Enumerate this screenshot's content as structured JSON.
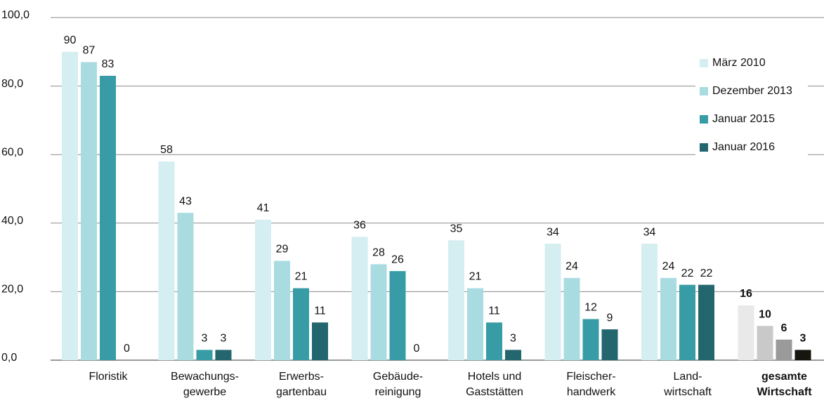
{
  "chart_data": {
    "type": "bar",
    "categories": [
      [
        "Floristik"
      ],
      [
        "Bewachungs-",
        "gewerbe"
      ],
      [
        "Erwerbs-",
        "gartenbau"
      ],
      [
        "Gebäude-",
        "reinigung"
      ],
      [
        "Hotels und",
        "Gaststätten"
      ],
      [
        "Fleischer-",
        "handwerk"
      ],
      [
        "Land-",
        "wirtschaft"
      ],
      [
        "gesamte",
        "Wirtschaft"
      ]
    ],
    "series": [
      {
        "name": "März 2010",
        "color": "#d5eef1",
        "colors": [
          "#d5eef1",
          "#d5eef1",
          "#d5eef1",
          "#d5eef1",
          "#d5eef1",
          "#d5eef1",
          "#d5eef1",
          "#e9e9e9"
        ],
        "values": [
          90,
          58,
          41,
          36,
          35,
          34,
          34,
          16
        ]
      },
      {
        "name": "Dezember 2013",
        "color": "#a9dce1",
        "colors": [
          "#a9dce1",
          "#a9dce1",
          "#a9dce1",
          "#a9dce1",
          "#a9dce1",
          "#a9dce1",
          "#a9dce1",
          "#c9c9c9"
        ],
        "values": [
          87,
          43,
          29,
          28,
          21,
          24,
          24,
          10
        ]
      },
      {
        "name": "Januar  2015",
        "color": "#379ca5",
        "colors": [
          "#379ca5",
          "#379ca5",
          "#379ca5",
          "#379ca5",
          "#379ca5",
          "#379ca5",
          "#379ca5",
          "#9a9a9a"
        ],
        "values": [
          83,
          3,
          21,
          26,
          11,
          12,
          22,
          6
        ]
      },
      {
        "name": "Januar 2016",
        "color": "#23666e",
        "colors": [
          "#23666e",
          "#23666e",
          "#23666e",
          "#23666e",
          "#23666e",
          "#23666e",
          "#23666e",
          "#16160e"
        ],
        "values": [
          0,
          3,
          11,
          0,
          3,
          9,
          22,
          3
        ]
      }
    ],
    "ylim": [
      0,
      100
    ],
    "yticks": [
      {
        "value": 0,
        "label": "0,0"
      },
      {
        "value": 20,
        "label": "20,0"
      },
      {
        "value": 40,
        "label": "40,0"
      },
      {
        "value": 60,
        "label": "60,0"
      },
      {
        "value": 80,
        "label": "80,0"
      },
      {
        "value": 100,
        "label": "100,0"
      }
    ],
    "grid": true,
    "legend": "right"
  }
}
